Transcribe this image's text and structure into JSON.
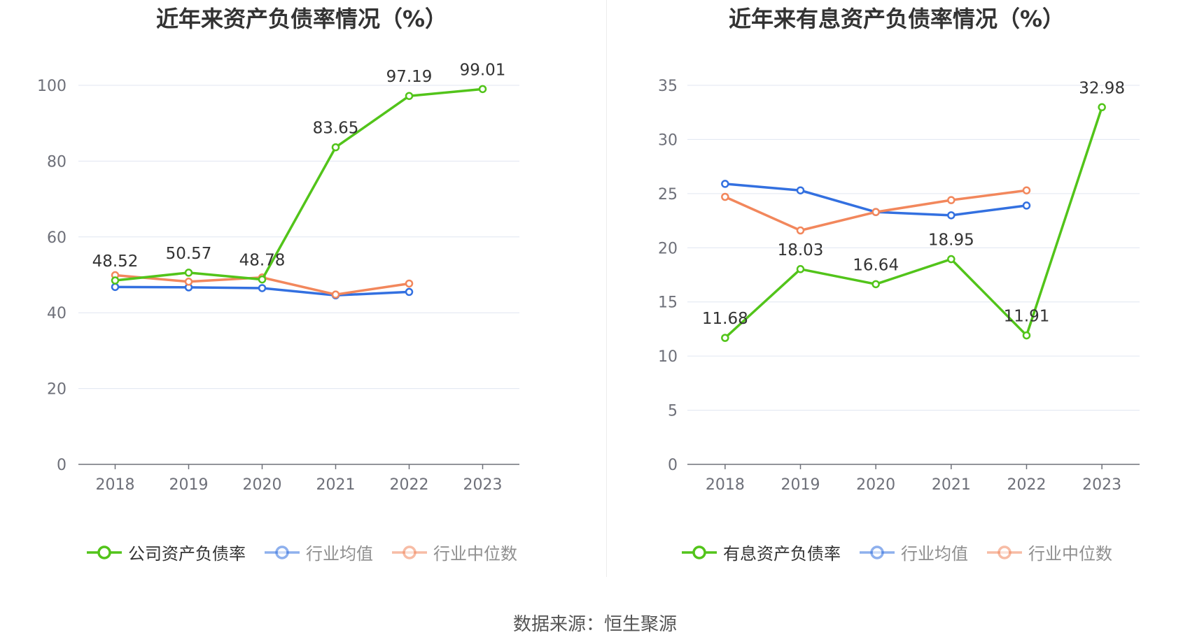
{
  "source": "数据来源：恒生聚源",
  "chart_data": [
    {
      "type": "line",
      "title": "近年来资产负债率情况（%）",
      "categories": [
        "2018",
        "2019",
        "2020",
        "2021",
        "2022",
        "2023"
      ],
      "ylim": [
        0,
        100
      ],
      "yticks": [
        0,
        20,
        40,
        60,
        80,
        100
      ],
      "grid": true,
      "legend_position": "bottom",
      "series": [
        {
          "name": "公司资产负债率",
          "color": "#52c41a",
          "values": [
            48.52,
            50.57,
            48.78,
            83.65,
            97.19,
            99.01
          ],
          "labels": [
            "48.52",
            "50.57",
            "48.78",
            "83.65",
            "97.19",
            "99.01"
          ]
        },
        {
          "name": "行业均值",
          "color": "#3370e0",
          "values": [
            46.8,
            46.7,
            46.5,
            44.6,
            45.5,
            null
          ]
        },
        {
          "name": "行业中位数",
          "color": "#f2875c",
          "values": [
            49.9,
            48.2,
            49.3,
            44.8,
            47.7,
            null
          ]
        }
      ]
    },
    {
      "type": "line",
      "title": "近年来有息资产负债率情况（%）",
      "categories": [
        "2018",
        "2019",
        "2020",
        "2021",
        "2022",
        "2023"
      ],
      "ylim": [
        0,
        35
      ],
      "yticks": [
        0,
        5,
        10,
        15,
        20,
        25,
        30,
        35
      ],
      "grid": true,
      "legend_position": "bottom",
      "series": [
        {
          "name": "有息资产负债率",
          "color": "#52c41a",
          "values": [
            11.68,
            18.03,
            16.64,
            18.95,
            11.91,
            32.98
          ],
          "labels": [
            "11.68",
            "18.03",
            "16.64",
            "18.95",
            "11.91",
            "32.98"
          ]
        },
        {
          "name": "行业均值",
          "color": "#3370e0",
          "values": [
            25.9,
            25.3,
            23.3,
            23.0,
            23.9,
            null
          ]
        },
        {
          "name": "行业中位数",
          "color": "#f2875c",
          "values": [
            24.7,
            21.6,
            23.3,
            24.4,
            25.3,
            null
          ]
        }
      ]
    }
  ]
}
